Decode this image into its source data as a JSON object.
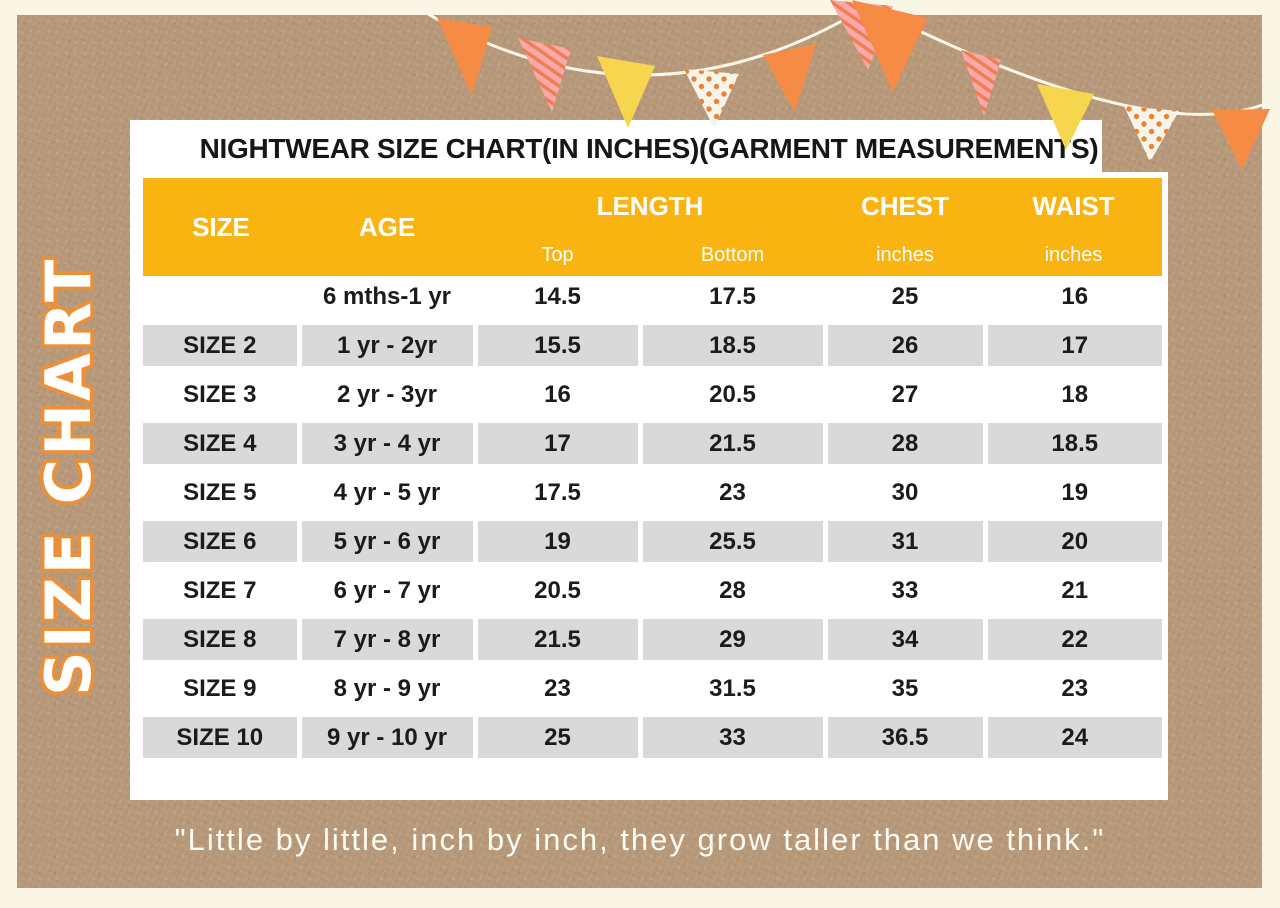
{
  "page": {
    "vertical_title": "SIZE CHART",
    "quote": "\"Little by little, inch by inch, they grow taller than we think.\""
  },
  "table": {
    "title": "NIGHTWEAR SIZE CHART(IN INCHES)(GARMENT MEASUREMENTS)",
    "columns": {
      "size": "SIZE",
      "age": "AGE",
      "length": "LENGTH",
      "length_sub_top": "Top",
      "length_sub_bottom": "Bottom",
      "chest": "CHEST",
      "chest_sub": "inches",
      "waist": "WAIST",
      "waist_sub": "inches"
    },
    "rows": [
      {
        "size": "",
        "age": "6 mths-1 yr",
        "top": "14.5",
        "bottom": "17.5",
        "chest": "25",
        "waist": "16"
      },
      {
        "size": "SIZE 2",
        "age": "1 yr - 2yr",
        "top": "15.5",
        "bottom": "18.5",
        "chest": "26",
        "waist": "17"
      },
      {
        "size": "SIZE 3",
        "age": "2 yr - 3yr",
        "top": "16",
        "bottom": "20.5",
        "chest": "27",
        "waist": "18"
      },
      {
        "size": "SIZE 4",
        "age": "3 yr - 4 yr",
        "top": "17",
        "bottom": "21.5",
        "chest": "28",
        "waist": "18.5"
      },
      {
        "size": "SIZE 5",
        "age": "4 yr - 5 yr",
        "top": "17.5",
        "bottom": "23",
        "chest": "30",
        "waist": "19"
      },
      {
        "size": "SIZE 6",
        "age": "5 yr - 6 yr",
        "top": "19",
        "bottom": "25.5",
        "chest": "31",
        "waist": "20"
      },
      {
        "size": "SIZE 7",
        "age": "6 yr - 7 yr",
        "top": "20.5",
        "bottom": "28",
        "chest": "33",
        "waist": "21"
      },
      {
        "size": "SIZE 8",
        "age": "7 yr - 8 yr",
        "top": "21.5",
        "bottom": "29",
        "chest": "34",
        "waist": "22"
      },
      {
        "size": "SIZE 9",
        "age": "8 yr - 9 yr",
        "top": "23",
        "bottom": "31.5",
        "chest": "35",
        "waist": "23"
      },
      {
        "size": "SIZE 10",
        "age": "9 yr - 10 yr",
        "top": "25",
        "bottom": "33",
        "chest": "36.5",
        "waist": "24"
      }
    ]
  },
  "decor": {
    "bunting_flags": [
      "orange",
      "pink-striped",
      "yellow",
      "white-dotted",
      "orange",
      "pink-striped",
      "orange",
      "pink-striped",
      "yellow",
      "white-dotted",
      "orange"
    ]
  },
  "colors": {
    "cream": "#faf6e6",
    "kraft": "#b7997a",
    "gold": "#f9b412",
    "row-gray": "#d9d9d9",
    "ink": "#1b1b1b",
    "header-text": "#ffffff",
    "flag-orange": "#f68b45",
    "flag-yellow": "#f7d64f",
    "flag-pink": "#f8a9ae",
    "flag-pink-stripe": "#f07e4e",
    "flag-dot-bg": "#f7f4ea",
    "flag-dot": "#ee8233",
    "string": "#fbf6e8",
    "outline-orange": "#ef8f35"
  }
}
